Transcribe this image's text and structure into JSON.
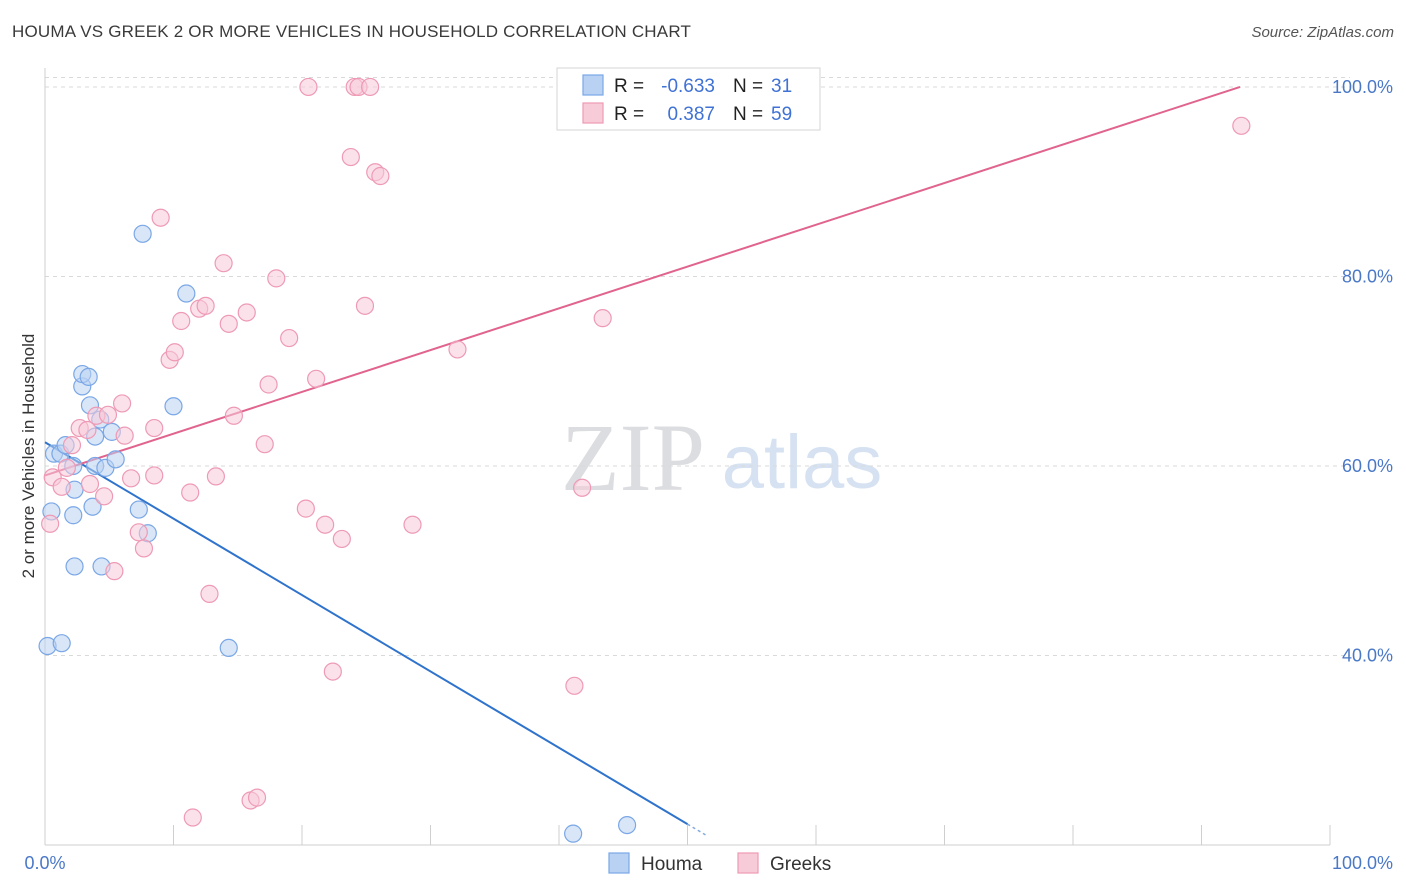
{
  "title": "HOUMA VS GREEK 2 OR MORE VEHICLES IN HOUSEHOLD CORRELATION CHART",
  "source": "Source: ZipAtlas.com",
  "watermark": {
    "zip": "ZIP",
    "atlas": "atlas"
  },
  "colors": {
    "houma": "#7aa7e6",
    "houma_fill": "#b9d1f3",
    "houma_line": "#2f73cc",
    "greeks": "#ee9ab5",
    "greeks_fill": "#f8cbd9",
    "greeks_line": "#e0648e",
    "tick": "#4a78c7",
    "grid": "#d9d9d9"
  },
  "legend": {
    "rows": [
      {
        "series": "houma",
        "r_label": "R =",
        "r_value": "-0.633",
        "n_label": "N =",
        "n_value": "31"
      },
      {
        "series": "greeks",
        "r_label": "R =",
        "r_value": "0.387",
        "n_label": "N =",
        "n_value": "59"
      }
    ]
  },
  "chart_data": {
    "type": "scatter",
    "title": "HOUMA VS GREEK 2 OR MORE VEHICLES IN HOUSEHOLD CORRELATION CHART",
    "xlabel": "",
    "ylabel": "2 or more Vehicles in Household",
    "xlim": [
      0,
      100
    ],
    "ylim": [
      20,
      102
    ],
    "x_tick_labels": [
      "0.0%",
      "100.0%"
    ],
    "y_ticks": [
      40,
      60,
      80,
      100
    ],
    "y_tick_labels": [
      "40.0%",
      "60.0%",
      "80.0%",
      "100.0%"
    ],
    "grid": true,
    "legend_position": "top-center",
    "series": [
      {
        "name": "Houma",
        "key": "houma",
        "r": -0.633,
        "n": 31,
        "trend": {
          "x": [
            0,
            50
          ],
          "y": [
            62.5,
            22.2
          ]
        },
        "points": [
          [
            0.2,
            41.0
          ],
          [
            1.3,
            41.3
          ],
          [
            0.5,
            55.2
          ],
          [
            2.2,
            54.8
          ],
          [
            2.3,
            57.5
          ],
          [
            2.2,
            60.0
          ],
          [
            0.7,
            61.3
          ],
          [
            1.2,
            61.3
          ],
          [
            1.6,
            62.2
          ],
          [
            2.3,
            49.4
          ],
          [
            3.7,
            55.7
          ],
          [
            4.4,
            49.4
          ],
          [
            3.9,
            60.0
          ],
          [
            4.7,
            59.8
          ],
          [
            3.9,
            63.1
          ],
          [
            3.5,
            66.4
          ],
          [
            4.3,
            64.9
          ],
          [
            5.5,
            60.7
          ],
          [
            5.2,
            63.6
          ],
          [
            2.9,
            68.4
          ],
          [
            2.9,
            69.7
          ],
          [
            3.4,
            69.4
          ],
          [
            7.3,
            55.4
          ],
          [
            8.0,
            52.9
          ],
          [
            10.0,
            66.3
          ],
          [
            11.0,
            78.2
          ],
          [
            7.6,
            84.5
          ],
          [
            14.3,
            40.8
          ],
          [
            41.1,
            21.2
          ],
          [
            45.3,
            22.1
          ],
          [
            52.1,
            100.6
          ]
        ]
      },
      {
        "name": "Greeks",
        "key": "greeks",
        "r": 0.387,
        "n": 59,
        "trend": {
          "x": [
            0,
            93
          ],
          "y": [
            59.0,
            100.0
          ]
        },
        "points": [
          [
            0.4,
            53.9
          ],
          [
            0.6,
            58.8
          ],
          [
            1.3,
            57.8
          ],
          [
            1.7,
            59.8
          ],
          [
            2.1,
            62.2
          ],
          [
            2.7,
            64.0
          ],
          [
            3.3,
            63.8
          ],
          [
            3.5,
            58.1
          ],
          [
            4.0,
            65.3
          ],
          [
            4.6,
            56.8
          ],
          [
            4.9,
            65.4
          ],
          [
            5.4,
            48.9
          ],
          [
            6.0,
            66.6
          ],
          [
            6.2,
            63.2
          ],
          [
            6.7,
            58.7
          ],
          [
            7.3,
            53.0
          ],
          [
            7.7,
            51.3
          ],
          [
            8.5,
            64.0
          ],
          [
            8.5,
            59.0
          ],
          [
            9.0,
            86.2
          ],
          [
            9.7,
            71.2
          ],
          [
            10.1,
            72.0
          ],
          [
            10.6,
            75.3
          ],
          [
            11.3,
            57.2
          ],
          [
            11.5,
            22.9
          ],
          [
            12.0,
            76.6
          ],
          [
            12.5,
            76.9
          ],
          [
            12.8,
            46.5
          ],
          [
            13.3,
            58.9
          ],
          [
            13.9,
            81.4
          ],
          [
            14.3,
            75.0
          ],
          [
            14.7,
            65.3
          ],
          [
            15.7,
            76.2
          ],
          [
            16.0,
            24.7
          ],
          [
            16.5,
            25.0
          ],
          [
            17.1,
            62.3
          ],
          [
            17.4,
            68.6
          ],
          [
            18.0,
            79.8
          ],
          [
            19.0,
            73.5
          ],
          [
            20.5,
            100.0
          ],
          [
            20.3,
            55.5
          ],
          [
            21.1,
            69.2
          ],
          [
            21.8,
            53.8
          ],
          [
            22.4,
            38.3
          ],
          [
            23.1,
            52.3
          ],
          [
            23.8,
            92.6
          ],
          [
            24.1,
            100.0
          ],
          [
            24.4,
            100.0
          ],
          [
            24.9,
            76.9
          ],
          [
            25.3,
            100.0
          ],
          [
            25.7,
            91.0
          ],
          [
            26.1,
            90.6
          ],
          [
            28.6,
            53.8
          ],
          [
            32.1,
            72.3
          ],
          [
            41.2,
            36.8
          ],
          [
            41.8,
            57.7
          ],
          [
            43.4,
            75.6
          ],
          [
            56.1,
            100.0
          ],
          [
            93.1,
            95.9
          ]
        ]
      }
    ],
    "bottom_legend": [
      "Houma",
      "Greeks"
    ]
  }
}
